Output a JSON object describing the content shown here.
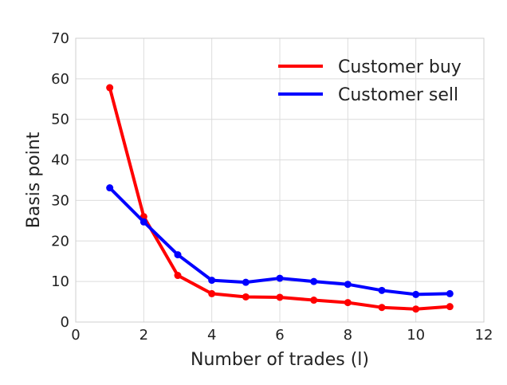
{
  "chart_data": {
    "type": "line",
    "title": "",
    "xlabel": "Number of trades (l)",
    "ylabel": "Basis point",
    "xlim": [
      0,
      12
    ],
    "ylim": [
      0,
      70
    ],
    "xticks": [
      0,
      2,
      4,
      6,
      8,
      10,
      12
    ],
    "yticks": [
      0,
      10,
      20,
      30,
      40,
      50,
      60,
      70
    ],
    "grid": true,
    "legend_position": "top-right",
    "series": [
      {
        "name": "Customer buy",
        "color": "#ff0000",
        "x": [
          1,
          2,
          3,
          4,
          5,
          6,
          7,
          8,
          9,
          10,
          11
        ],
        "y": [
          57.8,
          26.0,
          11.5,
          7.0,
          6.2,
          6.1,
          5.4,
          4.8,
          3.6,
          3.2,
          3.8
        ]
      },
      {
        "name": "Customer sell",
        "color": "#0000ff",
        "x": [
          1,
          2,
          3,
          4,
          5,
          6,
          7,
          8,
          9,
          10,
          11
        ],
        "y": [
          33.1,
          24.7,
          16.6,
          10.3,
          9.8,
          10.8,
          10.0,
          9.3,
          7.8,
          6.8,
          7.0
        ]
      }
    ]
  }
}
